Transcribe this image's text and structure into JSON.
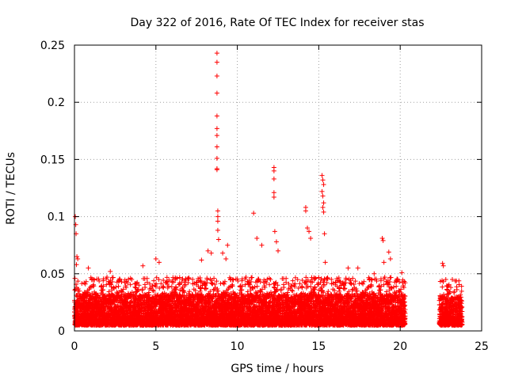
{
  "chart_data": {
    "type": "scatter",
    "title": "Day 322 of 2016, Rate Of TEC Index for receiver stas",
    "xlabel": "GPS time / hours",
    "ylabel": "ROTI / TECUs",
    "xlim": [
      0,
      25
    ],
    "ylim": [
      0,
      0.25
    ],
    "xticks": [
      0,
      5,
      10,
      15,
      20,
      25
    ],
    "yticks": [
      0,
      0.05,
      0.1,
      0.15,
      0.2,
      0.25
    ],
    "xtick_labels": [
      "0",
      "5",
      "10",
      "15",
      "20",
      "25"
    ],
    "ytick_labels": [
      "0",
      "0.05",
      "0.1",
      "0.15",
      "0.2",
      "0.25"
    ],
    "grid": true,
    "marker": "+",
    "color": "#ff0000",
    "series": [
      {
        "name": "ROTI",
        "background": {
          "segments": [
            {
              "x_start": 0.0,
              "x_end": 20.3,
              "y_min": 0.005,
              "y_typical_max": 0.032
            },
            {
              "x_start": 22.4,
              "x_end": 23.8,
              "y_min": 0.005,
              "y_typical_max": 0.03
            }
          ]
        },
        "notable_points": [
          {
            "x": 0.05,
            "y": 0.1
          },
          {
            "x": 0.08,
            "y": 0.093
          },
          {
            "x": 0.1,
            "y": 0.085
          },
          {
            "x": 0.15,
            "y": 0.065
          },
          {
            "x": 0.2,
            "y": 0.063
          },
          {
            "x": 0.12,
            "y": 0.058
          },
          {
            "x": 0.85,
            "y": 0.055
          },
          {
            "x": 2.2,
            "y": 0.052
          },
          {
            "x": 4.2,
            "y": 0.057
          },
          {
            "x": 5.0,
            "y": 0.063
          },
          {
            "x": 5.2,
            "y": 0.06
          },
          {
            "x": 7.8,
            "y": 0.062
          },
          {
            "x": 8.2,
            "y": 0.07
          },
          {
            "x": 8.4,
            "y": 0.068
          },
          {
            "x": 8.75,
            "y": 0.243
          },
          {
            "x": 8.75,
            "y": 0.235
          },
          {
            "x": 8.75,
            "y": 0.223
          },
          {
            "x": 8.75,
            "y": 0.208
          },
          {
            "x": 8.75,
            "y": 0.188
          },
          {
            "x": 8.75,
            "y": 0.177
          },
          {
            "x": 8.75,
            "y": 0.171
          },
          {
            "x": 8.75,
            "y": 0.161
          },
          {
            "x": 8.75,
            "y": 0.151
          },
          {
            "x": 8.75,
            "y": 0.142
          },
          {
            "x": 8.75,
            "y": 0.141
          },
          {
            "x": 8.8,
            "y": 0.105
          },
          {
            "x": 8.8,
            "y": 0.1
          },
          {
            "x": 8.8,
            "y": 0.096
          },
          {
            "x": 8.8,
            "y": 0.088
          },
          {
            "x": 8.85,
            "y": 0.08
          },
          {
            "x": 9.1,
            "y": 0.068
          },
          {
            "x": 9.3,
            "y": 0.063
          },
          {
            "x": 9.4,
            "y": 0.075
          },
          {
            "x": 11.0,
            "y": 0.103
          },
          {
            "x": 11.2,
            "y": 0.081
          },
          {
            "x": 11.5,
            "y": 0.075
          },
          {
            "x": 12.25,
            "y": 0.143
          },
          {
            "x": 12.25,
            "y": 0.14
          },
          {
            "x": 12.25,
            "y": 0.133
          },
          {
            "x": 12.25,
            "y": 0.121
          },
          {
            "x": 12.25,
            "y": 0.117
          },
          {
            "x": 12.3,
            "y": 0.087
          },
          {
            "x": 12.4,
            "y": 0.078
          },
          {
            "x": 12.5,
            "y": 0.07
          },
          {
            "x": 14.2,
            "y": 0.108
          },
          {
            "x": 14.2,
            "y": 0.105
          },
          {
            "x": 14.3,
            "y": 0.09
          },
          {
            "x": 14.4,
            "y": 0.087
          },
          {
            "x": 14.5,
            "y": 0.081
          },
          {
            "x": 15.2,
            "y": 0.136
          },
          {
            "x": 15.25,
            "y": 0.132
          },
          {
            "x": 15.3,
            "y": 0.128
          },
          {
            "x": 15.2,
            "y": 0.122
          },
          {
            "x": 15.25,
            "y": 0.118
          },
          {
            "x": 15.3,
            "y": 0.112
          },
          {
            "x": 15.25,
            "y": 0.108
          },
          {
            "x": 15.3,
            "y": 0.104
          },
          {
            "x": 15.35,
            "y": 0.085
          },
          {
            "x": 15.4,
            "y": 0.06
          },
          {
            "x": 16.8,
            "y": 0.055
          },
          {
            "x": 17.4,
            "y": 0.055
          },
          {
            "x": 18.4,
            "y": 0.05
          },
          {
            "x": 18.9,
            "y": 0.081
          },
          {
            "x": 18.95,
            "y": 0.079
          },
          {
            "x": 19.0,
            "y": 0.06
          },
          {
            "x": 19.3,
            "y": 0.069
          },
          {
            "x": 19.4,
            "y": 0.063
          },
          {
            "x": 20.1,
            "y": 0.051
          },
          {
            "x": 22.6,
            "y": 0.059
          },
          {
            "x": 22.65,
            "y": 0.057
          },
          {
            "x": 22.8,
            "y": 0.045
          },
          {
            "x": 23.2,
            "y": 0.045
          }
        ]
      }
    ]
  }
}
